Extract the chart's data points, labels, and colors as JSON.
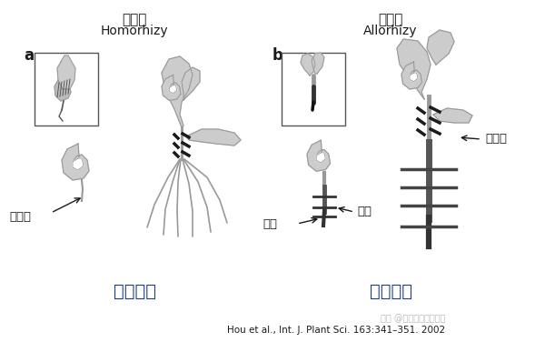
{
  "title_left": "同型根",
  "subtitle_left": "Homorhizy",
  "title_right": "异型根",
  "subtitle_right": "Allorhizy",
  "label_a": "a",
  "label_b": "b",
  "label_fern": "蕨类植物",
  "label_angio": "被子植物",
  "label_adventitious_left": "不定根",
  "label_main_root": "主根",
  "label_lateral_root": "侧根",
  "label_adventitious_right": "不定根",
  "citation": "Hou et al., Int. J. Plant Sci. 163:341–351. 2002",
  "watermark": "知乎 @鑫波和他的小鱼干",
  "bg_color": "#ffffff",
  "gray_light": "#cccccc",
  "gray_mid": "#999999",
  "gray_dark": "#555555",
  "black": "#1a1a1a",
  "blue_label": "#1a3a8a"
}
